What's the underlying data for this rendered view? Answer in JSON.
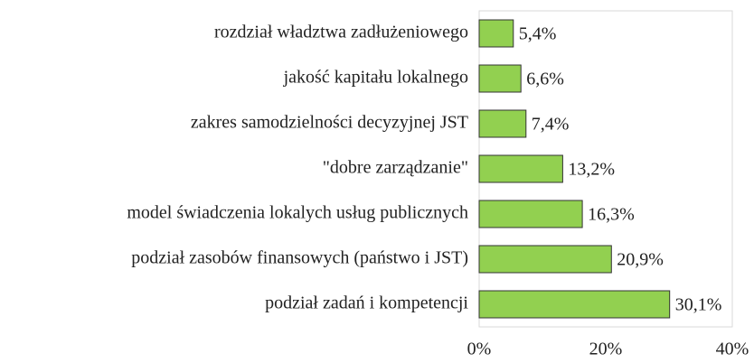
{
  "chart_data": {
    "type": "barh",
    "categories": [
      "rozdział władztwa zadłużeniowego",
      "jakość kapitału lokalnego",
      "zakres samodzielności decyzyjnej JST",
      "\"dobre zarządzanie\"",
      "model świadczenia lokalych usług publicznych",
      "podział zasobów finansowych (państwo i JST)",
      "podział zadań i kompetencji"
    ],
    "values": [
      5.4,
      6.6,
      7.4,
      13.2,
      16.3,
      20.9,
      30.1
    ],
    "value_labels": [
      "5,4%",
      "6,6%",
      "7,4%",
      "13,2%",
      "16,3%",
      "20,9%",
      "30,1%"
    ],
    "color": "#92d050",
    "xlim": [
      0,
      40
    ],
    "xticks": [
      {
        "value": 0,
        "label": "0%"
      },
      {
        "value": 20,
        "label": "20%"
      },
      {
        "value": 40,
        "label": "40%"
      }
    ]
  }
}
